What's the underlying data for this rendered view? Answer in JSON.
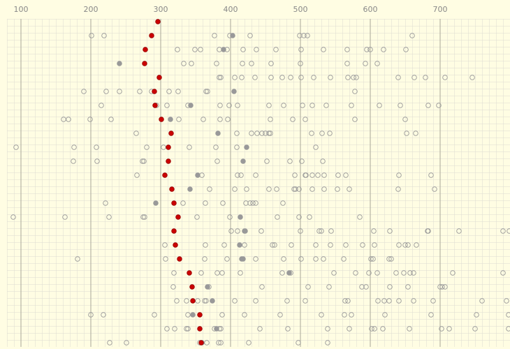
{
  "chart_data": {
    "type": "dot",
    "categories": [
      null,
      null,
      null,
      null,
      null,
      null,
      null,
      null,
      null,
      null,
      null,
      null,
      null,
      null,
      null,
      null,
      null,
      null,
      null,
      null,
      null,
      null,
      null,
      null
    ],
    "xlim": [
      80,
      800
    ],
    "xticks": [
      100,
      200,
      300,
      400,
      500,
      600,
      700
    ],
    "grid": true,
    "series": [
      {
        "color": "#999999",
        "fill": "none",
        "values": [
          [],
          [
            201,
            219,
            377,
            399,
            428,
            499,
            505,
            510,
            660
          ],
          [
            324,
            349,
            357,
            384,
            395,
            418,
            437,
            465,
            501,
            533,
            567,
            595,
            600,
            619,
            651
          ],
          [
            333,
            344,
            380,
            417,
            430,
            458,
            500,
            567,
            593,
            610
          ],
          [
            384,
            386,
            406,
            416,
            435,
            458,
            474,
            486,
            501,
            519,
            543,
            568,
            576,
            580,
            640,
            663,
            679,
            707,
            746
          ],
          [
            190,
            222,
            241,
            270,
            287,
            312,
            325,
            365,
            367,
            578
          ],
          [
            215,
            294,
            309,
            339,
            385,
            398,
            410,
            455,
            476,
            503,
            517,
            537,
            573,
            613,
            643,
            683,
            698
          ],
          [
            161,
            168,
            199,
            229,
            326,
            361,
            385,
            396,
            457,
            489,
            507,
            578,
            650
          ],
          [
            265,
            409,
            430,
            438,
            445,
            450,
            455,
            457,
            516,
            531,
            542,
            652,
            665
          ],
          [
            93,
            176,
            208,
            280,
            304,
            341,
            379,
            409,
            522
          ],
          [
            175,
            209,
            274,
            276,
            381,
            452,
            485,
            502,
            532
          ],
          [
            266,
            359,
            410,
            415,
            436,
            492,
            507,
            508,
            517,
            525,
            534,
            554,
            565,
            641,
            687
          ],
          [
            370,
            406,
            423,
            455,
            466,
            491,
            493,
            498,
            517,
            534,
            553,
            570,
            640,
            692
          ],
          [
            221,
            332,
            364,
            389,
            422,
            428,
            432,
            436,
            475
          ],
          [
            89,
            163,
            226,
            275,
            277,
            352,
            399,
            467,
            498,
            513,
            585
          ],
          [
            401,
            410,
            444,
            500,
            527,
            530,
            544,
            683,
            605,
            628,
            682,
            727,
            790,
            799
          ],
          [
            306,
            364,
            391,
            420,
            460,
            463,
            487,
            522,
            543,
            565,
            589,
            606,
            641,
            650,
            654,
            666
          ],
          [
            181,
            307,
            363,
            395,
            436,
            476,
            501,
            522,
            533,
            562,
            601,
            604,
            627,
            630
          ],
          [
            319,
            358,
            381,
            388,
            414,
            474,
            486,
            548,
            579,
            598,
            610,
            637,
            648,
            657,
            662,
            718,
            790
          ],
          [
            318,
            369,
            445,
            511,
            541,
            588,
            594,
            628,
            654,
            700,
            703,
            707
          ],
          [
            323,
            337,
            353,
            363,
            365,
            406,
            436,
            481,
            507,
            564,
            568,
            611,
            620,
            627,
            641,
            662,
            690,
            760,
            795
          ],
          [
            200,
            218,
            291,
            339,
            388,
            420,
            471,
            530,
            563,
            573,
            621,
            687,
            752,
            798
          ],
          [
            309,
            320,
            337,
            339,
            377,
            384,
            386,
            442,
            482,
            539,
            570,
            602,
            606,
            618,
            656,
            702,
            713,
            750,
            798
          ],
          [
            227,
            251,
            356,
            366,
            383,
            386,
            426,
            497,
            539
          ]
        ]
      },
      {
        "color": "#999999",
        "fill": "#999999",
        "values": [
          [],
          [
            403
          ],
          [
            390
          ],
          [
            241
          ],
          [],
          [
            405
          ],
          [
            343
          ],
          [
            314
          ],
          [
            382
          ],
          [
            423
          ],
          [
            418
          ],
          [
            353
          ],
          [
            342
          ],
          [
            293
          ],
          [
            414
          ],
          [
            420,
            421
          ],
          [
            413
          ],
          [
            416,
            418
          ],
          [
            484
          ],
          [
            367
          ],
          [
            374
          ],
          [
            346
          ],
          [
            380
          ],
          [
            359
          ]
        ]
      },
      {
        "color": "#990000",
        "fill": "#cc0000",
        "values": [
          296,
          287,
          278,
          277,
          298,
          291,
          292,
          301,
          315,
          311,
          311,
          306,
          316,
          319,
          325,
          319,
          321,
          327,
          341,
          345,
          346,
          356,
          356,
          358
        ]
      }
    ]
  }
}
